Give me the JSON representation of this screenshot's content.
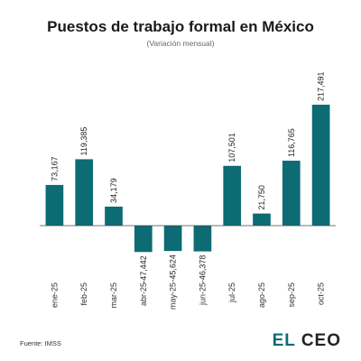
{
  "chart_data": {
    "type": "bar",
    "title": "Puestos de trabajo formal en México",
    "subtitle": "(Variación mensual)",
    "categories": [
      "ene-25",
      "feb-25",
      "mar-25",
      "abr-25",
      "may-25",
      "jun-25",
      "jul-25",
      "ago-25",
      "sep-25",
      "oct-25"
    ],
    "values": [
      73167,
      119385,
      34179,
      -47442,
      -45624,
      -46378,
      107501,
      21750,
      116765,
      217491
    ],
    "labels": [
      "73,167",
      "119,385",
      "34,179",
      "-47,442",
      "-45,624",
      "-46,378",
      "107,501",
      "21,750",
      "116,765",
      "217,491"
    ],
    "bar_color": "#0d6b74",
    "xlabel": "",
    "ylabel": "",
    "grid": false,
    "legend": "none"
  },
  "footer": {
    "source": "Fuente: IMSS",
    "logo_left": "EL",
    "logo_right": "CEO",
    "logo_left_color": "#0d6b74",
    "logo_right_color": "#222222"
  }
}
